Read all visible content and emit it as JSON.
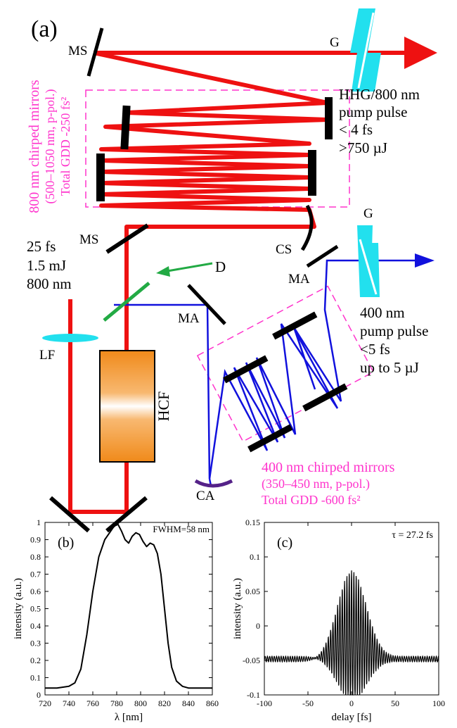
{
  "panel_a": {
    "panel_label": "(a)",
    "labels": {
      "ms_top": "MS",
      "ms_bottom": "MS",
      "g_top": "G",
      "g_bottom": "G",
      "cs": "CS",
      "ma_right": "MA",
      "ma_left": "MA",
      "d": "D",
      "lf": "LF",
      "hcf": "HCF",
      "ca": "CA"
    },
    "hhg_pump": [
      "HHG/800 nm",
      "pump pulse",
      "< 4 fs",
      ">750 µJ"
    ],
    "input_pulse": [
      "25 fs",
      "1.5 mJ",
      "800 nm"
    ],
    "pump_400": [
      "400 nm",
      "pump pulse",
      "<5 fs",
      "up to 5 µJ"
    ],
    "chirped_800": [
      "800 nm chirped mirrors",
      "(500–1050 nm, p-pol.)",
      "Total GDD -250 fs²"
    ],
    "chirped_400": [
      "400 nm chirped mirrors",
      "(350–450 nm, p-pol.)",
      "Total GDD -600 fs²"
    ],
    "colors": {
      "red_beam": "#ee1111",
      "blue_beam": "#1111dd",
      "magenta": "#ff33cc",
      "cyan": "#22e0ee",
      "green": "#22aa44",
      "hcf_orange": "#f08a1a",
      "ca_purple": "#552288"
    }
  },
  "chart_data": [
    {
      "type": "line",
      "panel_label": "(b)",
      "annotation": "FWHM=58 nm",
      "xlabel": "λ [nm]",
      "ylabel": "intensity (a.u.)",
      "xlim": [
        720,
        860
      ],
      "ylim": [
        0,
        1
      ],
      "xticks": [
        720,
        740,
        760,
        780,
        800,
        820,
        840,
        860
      ],
      "yticks": [
        0,
        0.1,
        0.2,
        0.3,
        0.4,
        0.5,
        0.6,
        0.7,
        0.8,
        0.9,
        1
      ],
      "x": [
        720,
        730,
        740,
        745,
        750,
        755,
        760,
        765,
        770,
        775,
        778,
        781,
        784,
        787,
        790,
        793,
        796,
        799,
        802,
        805,
        808,
        811,
        814,
        817,
        820,
        823,
        826,
        830,
        835,
        840,
        850,
        860
      ],
      "y": [
        0.04,
        0.04,
        0.05,
        0.07,
        0.15,
        0.35,
        0.6,
        0.8,
        0.9,
        0.95,
        0.98,
        0.99,
        0.95,
        0.9,
        0.88,
        0.92,
        0.94,
        0.93,
        0.89,
        0.86,
        0.88,
        0.87,
        0.82,
        0.7,
        0.5,
        0.3,
        0.16,
        0.08,
        0.05,
        0.04,
        0.04,
        0.04
      ]
    },
    {
      "type": "line",
      "panel_label": "(c)",
      "annotation": "τ = 27.2 fs",
      "xlabel": "delay [fs]",
      "ylabel": "intensity (a.u.)",
      "xlim": [
        -100,
        100
      ],
      "ylim": [
        -0.1,
        0.15
      ],
      "xticks": [
        -100,
        -50,
        0,
        50,
        100
      ],
      "yticks": [
        -0.1,
        -0.05,
        0,
        0.05,
        0.1,
        0.15
      ],
      "baseline": -0.048,
      "envelope_peak": 0.185,
      "envelope_sigma": 16.5,
      "fringe_period": 2.67,
      "noise_amplitude": 0.004
    }
  ]
}
